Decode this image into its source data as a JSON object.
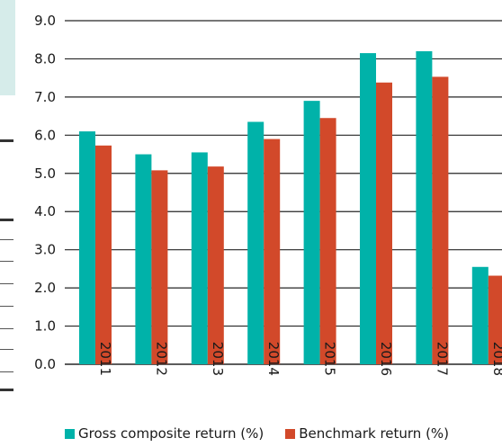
{
  "chart_data": {
    "type": "bar",
    "categories": [
      "2011",
      "2012",
      "2013",
      "2014",
      "2015",
      "2016",
      "2017",
      "2018"
    ],
    "series": [
      {
        "name": "Gross composite return (%)",
        "color": "#00b2a9",
        "values": [
          6.1,
          5.5,
          5.55,
          6.35,
          6.9,
          8.15,
          8.2,
          2.55
        ]
      },
      {
        "name": "Benchmark return (%)",
        "color": "#d2492a",
        "values": [
          5.73,
          5.08,
          5.18,
          5.9,
          6.45,
          7.38,
          7.53,
          2.32
        ]
      }
    ],
    "ylim": [
      0,
      9
    ],
    "yticks": [
      "0.0",
      "1.0",
      "2.0",
      "3.0",
      "4.0",
      "5.0",
      "6.0",
      "7.0",
      "8.0",
      "9.0"
    ],
    "grid": true,
    "legend_position": "bottom"
  }
}
